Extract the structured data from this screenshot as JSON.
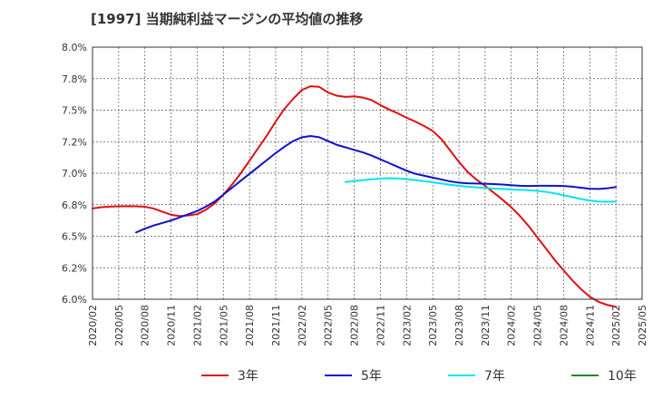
{
  "chart_data": {
    "type": "line",
    "title": "[1997]  当期純利益マージンの平均値の推移",
    "xlabel": "",
    "ylabel": "",
    "ylim": [
      6.0,
      8.0
    ],
    "yticks": [
      6.0,
      6.25,
      6.5,
      6.75,
      7.0,
      7.25,
      7.5,
      7.75,
      8.0
    ],
    "ytick_labels": [
      "6.0%",
      "6.2%",
      "6.5%",
      "6.8%",
      "7.0%",
      "7.2%",
      "7.5%",
      "7.8%",
      "8.0%"
    ],
    "xlim": [
      "2020-02",
      "2025-05"
    ],
    "xticks": [
      "2020/02",
      "2020/05",
      "2020/08",
      "2020/11",
      "2021/02",
      "2021/05",
      "2021/08",
      "2021/11",
      "2022/02",
      "2022/05",
      "2022/08",
      "2022/11",
      "2023/02",
      "2023/05",
      "2023/08",
      "2023/11",
      "2024/02",
      "2024/05",
      "2024/08",
      "2024/11",
      "2025/02",
      "2025/05"
    ],
    "grid": true,
    "legend_position": "bottom",
    "series": [
      {
        "name": "3年",
        "color": "#dd1111",
        "points": [
          [
            "2020-02",
            6.72
          ],
          [
            "2020-03",
            6.73
          ],
          [
            "2020-04",
            6.735
          ],
          [
            "2020-05",
            6.737
          ],
          [
            "2020-06",
            6.738
          ],
          [
            "2020-07",
            6.737
          ],
          [
            "2020-08",
            6.734
          ],
          [
            "2020-09",
            6.72
          ],
          [
            "2020-10",
            6.695
          ],
          [
            "2020-11",
            6.67
          ],
          [
            "2020-12",
            6.66
          ],
          [
            "2021-01",
            6.665
          ],
          [
            "2021-02",
            6.675
          ],
          [
            "2021-03",
            6.71
          ],
          [
            "2021-04",
            6.76
          ],
          [
            "2021-05",
            6.83
          ],
          [
            "2021-06",
            6.91
          ],
          [
            "2021-07",
            7.0
          ],
          [
            "2021-08",
            7.1
          ],
          [
            "2021-09",
            7.2
          ],
          [
            "2021-10",
            7.3
          ],
          [
            "2021-11",
            7.41
          ],
          [
            "2021-12",
            7.51
          ],
          [
            "2022-01",
            7.59
          ],
          [
            "2022-02",
            7.66
          ],
          [
            "2022-03",
            7.69
          ],
          [
            "2022-04",
            7.685
          ],
          [
            "2022-05",
            7.64
          ],
          [
            "2022-06",
            7.615
          ],
          [
            "2022-07",
            7.605
          ],
          [
            "2022-08",
            7.61
          ],
          [
            "2022-09",
            7.6
          ],
          [
            "2022-10",
            7.58
          ],
          [
            "2022-11",
            7.54
          ],
          [
            "2022-12",
            7.505
          ],
          [
            "2023-01",
            7.475
          ],
          [
            "2023-02",
            7.44
          ],
          [
            "2023-03",
            7.41
          ],
          [
            "2023-04",
            7.375
          ],
          [
            "2023-05",
            7.335
          ],
          [
            "2023-06",
            7.27
          ],
          [
            "2023-07",
            7.18
          ],
          [
            "2023-08",
            7.09
          ],
          [
            "2023-09",
            7.01
          ],
          [
            "2023-10",
            6.95
          ],
          [
            "2023-11",
            6.9
          ],
          [
            "2023-12",
            6.845
          ],
          [
            "2024-01",
            6.79
          ],
          [
            "2024-02",
            6.73
          ],
          [
            "2024-03",
            6.66
          ],
          [
            "2024-04",
            6.58
          ],
          [
            "2024-05",
            6.49
          ],
          [
            "2024-06",
            6.4
          ],
          [
            "2024-07",
            6.31
          ],
          [
            "2024-08",
            6.23
          ],
          [
            "2024-09",
            6.15
          ],
          [
            "2024-10",
            6.08
          ],
          [
            "2024-11",
            6.02
          ],
          [
            "2024-12",
            5.98
          ],
          [
            "2025-01",
            5.955
          ],
          [
            "2025-02",
            5.94
          ]
        ]
      },
      {
        "name": "5年",
        "color": "#1111cc",
        "points": [
          [
            "2020-07",
            6.53
          ],
          [
            "2020-08",
            6.56
          ],
          [
            "2020-09",
            6.585
          ],
          [
            "2020-10",
            6.605
          ],
          [
            "2020-11",
            6.625
          ],
          [
            "2020-12",
            6.65
          ],
          [
            "2021-01",
            6.675
          ],
          [
            "2021-02",
            6.7
          ],
          [
            "2021-03",
            6.735
          ],
          [
            "2021-04",
            6.775
          ],
          [
            "2021-05",
            6.83
          ],
          [
            "2021-06",
            6.885
          ],
          [
            "2021-07",
            6.94
          ],
          [
            "2021-08",
            6.995
          ],
          [
            "2021-09",
            7.05
          ],
          [
            "2021-10",
            7.105
          ],
          [
            "2021-11",
            7.16
          ],
          [
            "2021-12",
            7.21
          ],
          [
            "2022-01",
            7.255
          ],
          [
            "2022-02",
            7.285
          ],
          [
            "2022-03",
            7.295
          ],
          [
            "2022-04",
            7.285
          ],
          [
            "2022-05",
            7.255
          ],
          [
            "2022-06",
            7.225
          ],
          [
            "2022-07",
            7.205
          ],
          [
            "2022-08",
            7.185
          ],
          [
            "2022-09",
            7.165
          ],
          [
            "2022-10",
            7.14
          ],
          [
            "2022-11",
            7.11
          ],
          [
            "2022-12",
            7.08
          ],
          [
            "2023-01",
            7.05
          ],
          [
            "2023-02",
            7.02
          ],
          [
            "2023-03",
            6.995
          ],
          [
            "2023-04",
            6.98
          ],
          [
            "2023-05",
            6.965
          ],
          [
            "2023-06",
            6.95
          ],
          [
            "2023-07",
            6.935
          ],
          [
            "2023-08",
            6.925
          ],
          [
            "2023-09",
            6.92
          ],
          [
            "2023-10",
            6.918
          ],
          [
            "2023-11",
            6.916
          ],
          [
            "2023-12",
            6.914
          ],
          [
            "2024-01",
            6.91
          ],
          [
            "2024-02",
            6.905
          ],
          [
            "2024-03",
            6.9
          ],
          [
            "2024-04",
            6.898
          ],
          [
            "2024-05",
            6.9
          ],
          [
            "2024-06",
            6.9
          ],
          [
            "2024-07",
            6.9
          ],
          [
            "2024-08",
            6.898
          ],
          [
            "2024-09",
            6.893
          ],
          [
            "2024-10",
            6.885
          ],
          [
            "2024-11",
            6.877
          ],
          [
            "2024-12",
            6.875
          ],
          [
            "2025-01",
            6.88
          ],
          [
            "2025-02",
            6.89
          ]
        ]
      },
      {
        "name": "7年",
        "color": "#00e5ee",
        "points": [
          [
            "2022-07",
            6.93
          ],
          [
            "2022-08",
            6.938
          ],
          [
            "2022-09",
            6.945
          ],
          [
            "2022-10",
            6.952
          ],
          [
            "2022-11",
            6.957
          ],
          [
            "2022-12",
            6.96
          ],
          [
            "2023-01",
            6.958
          ],
          [
            "2023-02",
            6.953
          ],
          [
            "2023-03",
            6.945
          ],
          [
            "2023-04",
            6.937
          ],
          [
            "2023-05",
            6.928
          ],
          [
            "2023-06",
            6.918
          ],
          [
            "2023-07",
            6.908
          ],
          [
            "2023-08",
            6.9
          ],
          [
            "2023-09",
            6.893
          ],
          [
            "2023-10",
            6.888
          ],
          [
            "2023-11",
            6.883
          ],
          [
            "2023-12",
            6.878
          ],
          [
            "2024-01",
            6.875
          ],
          [
            "2024-02",
            6.871
          ],
          [
            "2024-03",
            6.868
          ],
          [
            "2024-04",
            6.865
          ],
          [
            "2024-05",
            6.86
          ],
          [
            "2024-06",
            6.852
          ],
          [
            "2024-07",
            6.84
          ],
          [
            "2024-08",
            6.825
          ],
          [
            "2024-09",
            6.81
          ],
          [
            "2024-10",
            6.795
          ],
          [
            "2024-11",
            6.783
          ],
          [
            "2024-12",
            6.775
          ],
          [
            "2025-01",
            6.773
          ],
          [
            "2025-02",
            6.775
          ]
        ]
      },
      {
        "name": "10年",
        "color": "#228822",
        "points": []
      }
    ]
  }
}
